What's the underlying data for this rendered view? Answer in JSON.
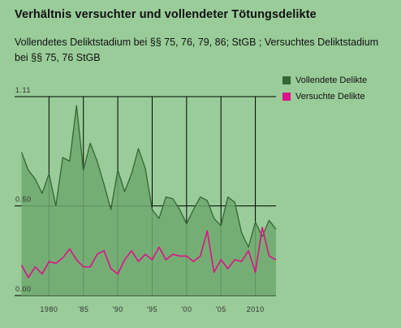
{
  "chart_data": {
    "type": "area",
    "title": "Verhältnis versuchter und vollendeter Tötungsdelikte",
    "subtitle": "Vollendetes Deliktstadium bei §§ 75, 76, 79, 86; StGB ; Versuchtes Deliktstadium bei §§ 75, 76 StGB",
    "x": [
      1976,
      1977,
      1978,
      1979,
      1980,
      1981,
      1982,
      1983,
      1984,
      1985,
      1986,
      1987,
      1988,
      1989,
      1990,
      1991,
      1992,
      1993,
      1994,
      1995,
      1996,
      1997,
      1998,
      1999,
      2000,
      2001,
      2002,
      2003,
      2004,
      2005,
      2006,
      2007,
      2008,
      2009,
      2010,
      2011,
      2012,
      2013
    ],
    "series": [
      {
        "name": "Vollendete Delikte",
        "color": "#336633",
        "fill": "#6ea86e",
        "values": [
          0.8,
          0.7,
          0.65,
          0.57,
          0.68,
          0.5,
          0.77,
          0.75,
          1.06,
          0.7,
          0.85,
          0.75,
          0.62,
          0.48,
          0.7,
          0.58,
          0.68,
          0.82,
          0.71,
          0.48,
          0.43,
          0.55,
          0.54,
          0.48,
          0.4,
          0.48,
          0.55,
          0.53,
          0.43,
          0.39,
          0.55,
          0.52,
          0.35,
          0.27,
          0.41,
          0.33,
          0.42,
          0.37
        ]
      },
      {
        "name": "Versuchte Delikte",
        "color": "#dd1188",
        "values": [
          0.17,
          0.1,
          0.16,
          0.12,
          0.19,
          0.18,
          0.21,
          0.26,
          0.2,
          0.16,
          0.16,
          0.23,
          0.25,
          0.15,
          0.12,
          0.2,
          0.25,
          0.19,
          0.23,
          0.2,
          0.27,
          0.2,
          0.23,
          0.22,
          0.22,
          0.19,
          0.22,
          0.36,
          0.13,
          0.2,
          0.15,
          0.2,
          0.19,
          0.25,
          0.13,
          0.38,
          0.22,
          0.2
        ]
      }
    ],
    "y_ticks": [
      "0.00",
      "0.50",
      "1.11"
    ],
    "y_tick_values": [
      0.0,
      0.5,
      1.11
    ],
    "x_ticks": [
      "1980",
      "'85",
      "'90",
      "'95",
      "'00",
      "'05",
      "2010"
    ],
    "x_tick_values": [
      1980,
      1985,
      1990,
      1995,
      2000,
      2005,
      2010
    ],
    "xlim": [
      1975,
      2013
    ],
    "ylim": [
      0,
      1.11
    ],
    "legend_position": "top-right",
    "grid": true
  }
}
